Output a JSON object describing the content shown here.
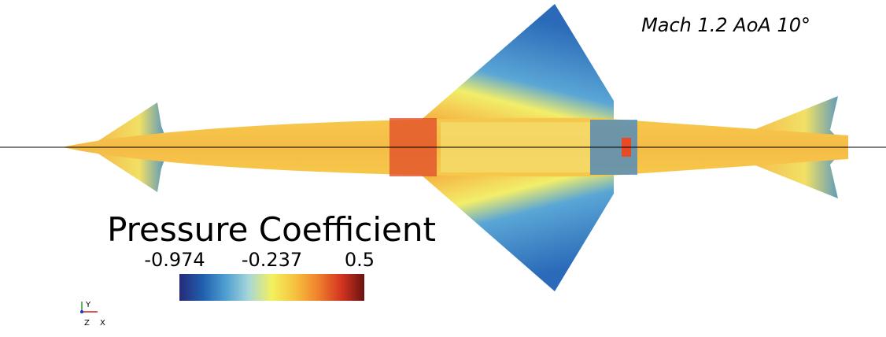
{
  "title": "Mach 1.2 AoA 10°",
  "colorbar": {
    "title": "Pressure Coefficient",
    "range": [
      -0.974,
      0.5
    ],
    "ticks": [
      -0.974,
      -0.237,
      0.5
    ],
    "colormap": [
      "#262a78",
      "#1f5fae",
      "#4f9fd2",
      "#a6d6d8",
      "#f3f15e",
      "#f6c23e",
      "#f0812e",
      "#d4351f",
      "#6a1210"
    ]
  },
  "axes_triad": {
    "y": "Y",
    "z": "Z",
    "x": "X"
  }
}
